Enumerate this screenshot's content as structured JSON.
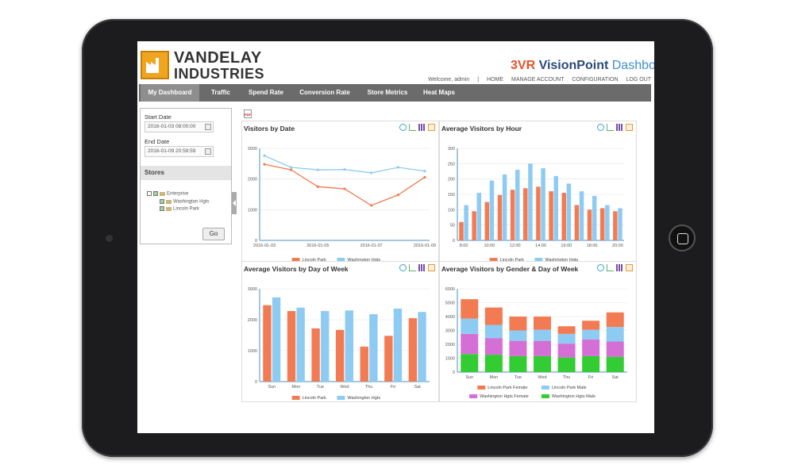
{
  "colors": {
    "lincoln": "#f37b53",
    "washington": "#8ecbf2",
    "lincoln_female": "#f37b53",
    "lincoln_male": "#8ecbf2",
    "washington_female": "#d46fd6",
    "washington_male": "#33cc33"
  },
  "header": {
    "brand_line1": "VANDELAY",
    "brand_line2": "INDUSTRIES",
    "product_mark": "3VR",
    "product_name": "VisionPoint",
    "product_suffix": "Dashboard",
    "welcome": "Welcome, admin",
    "separator": "|",
    "links": [
      "HOME",
      "MANAGE ACCOUNT",
      "CONFIGURATION",
      "LOG OUT"
    ]
  },
  "nav": {
    "tabs": [
      "My Dashboard",
      "Traffic",
      "Spend Rate",
      "Conversion Rate",
      "Store Metrics",
      "Heat Maps"
    ],
    "active": "My Dashboard"
  },
  "sidebar": {
    "start_label": "Start Date",
    "start_value": "2016-01-03 08:00:00",
    "end_label": "End Date",
    "end_value": "2016-01-09 20:59:59",
    "stores_label": "Stores",
    "tree": [
      "Enterprise",
      "Washington Hgts",
      "Lincoln Park"
    ],
    "go_label": "Go"
  },
  "pdf_label": "PDF",
  "charts": {
    "by_date": {
      "title": "Visitors by Date",
      "type": "line",
      "ylim": [
        0,
        3000
      ],
      "yticks": [
        "0",
        "1000",
        "2000",
        "3000"
      ],
      "xticks": [
        "2016-01-03",
        "2016-01-05",
        "2016-01-07",
        "2016-01-09"
      ],
      "series": [
        {
          "name": "Lincoln Park",
          "values": [
            2480,
            2300,
            1750,
            1680,
            1140,
            1480,
            2060
          ]
        },
        {
          "name": "Washington Hgts",
          "values": [
            2760,
            2380,
            2300,
            2310,
            2200,
            2380,
            2260
          ]
        }
      ]
    },
    "by_hour": {
      "title": "Average Visitors by Hour",
      "type": "bar",
      "ylim": [
        0,
        300
      ],
      "yticks": [
        "0",
        "50",
        "100",
        "150",
        "200",
        "250",
        "300"
      ],
      "xticks": [
        "8:00",
        "10:00",
        "12:00",
        "14:00",
        "16:00",
        "18:00",
        "20:00"
      ],
      "series": [
        {
          "name": "Lincoln Park",
          "values": [
            60,
            95,
            125,
            148,
            165,
            170,
            175,
            160,
            155,
            115,
            100,
            105,
            95
          ]
        },
        {
          "name": "Washington Hgts",
          "values": [
            115,
            155,
            195,
            215,
            230,
            250,
            235,
            210,
            185,
            160,
            145,
            115,
            105
          ]
        }
      ]
    },
    "by_day": {
      "title": "Average Visitors by Day of Week",
      "type": "bar",
      "ylim": [
        0,
        3000
      ],
      "yticks": [
        "0",
        "1000",
        "2000",
        "3000"
      ],
      "categories": [
        "Sun",
        "Mon",
        "Tue",
        "Wed",
        "Thu",
        "Fri",
        "Sat"
      ],
      "series": [
        {
          "name": "Lincoln Park",
          "values": [
            2470,
            2280,
            1720,
            1670,
            1130,
            1480,
            2050
          ]
        },
        {
          "name": "Washington Hgts",
          "values": [
            2720,
            2390,
            2280,
            2300,
            2180,
            2360,
            2250
          ]
        }
      ]
    },
    "by_gender": {
      "title": "Average Visitors by Gender & Day of Week",
      "type": "bar",
      "stacked": true,
      "ylim": [
        0,
        6000
      ],
      "yticks": [
        "0",
        "1000",
        "2000",
        "3000",
        "4000",
        "5000",
        "6000"
      ],
      "categories": [
        "Sun",
        "Mon",
        "Tue",
        "Wed",
        "Thu",
        "Fri",
        "Sat"
      ],
      "series": [
        {
          "name": "Washington Hgts Male",
          "values": [
            1300,
            1250,
            1150,
            1150,
            1050,
            1150,
            1100
          ]
        },
        {
          "name": "Washington Hgts Female",
          "values": [
            1450,
            1200,
            1100,
            1100,
            1000,
            1200,
            1100
          ]
        },
        {
          "name": "Lincoln Park Male",
          "values": [
            1100,
            950,
            750,
            800,
            700,
            700,
            1050
          ]
        },
        {
          "name": "Lincoln Park Female",
          "values": [
            1400,
            1250,
            1000,
            950,
            550,
            650,
            1050
          ]
        }
      ]
    }
  }
}
